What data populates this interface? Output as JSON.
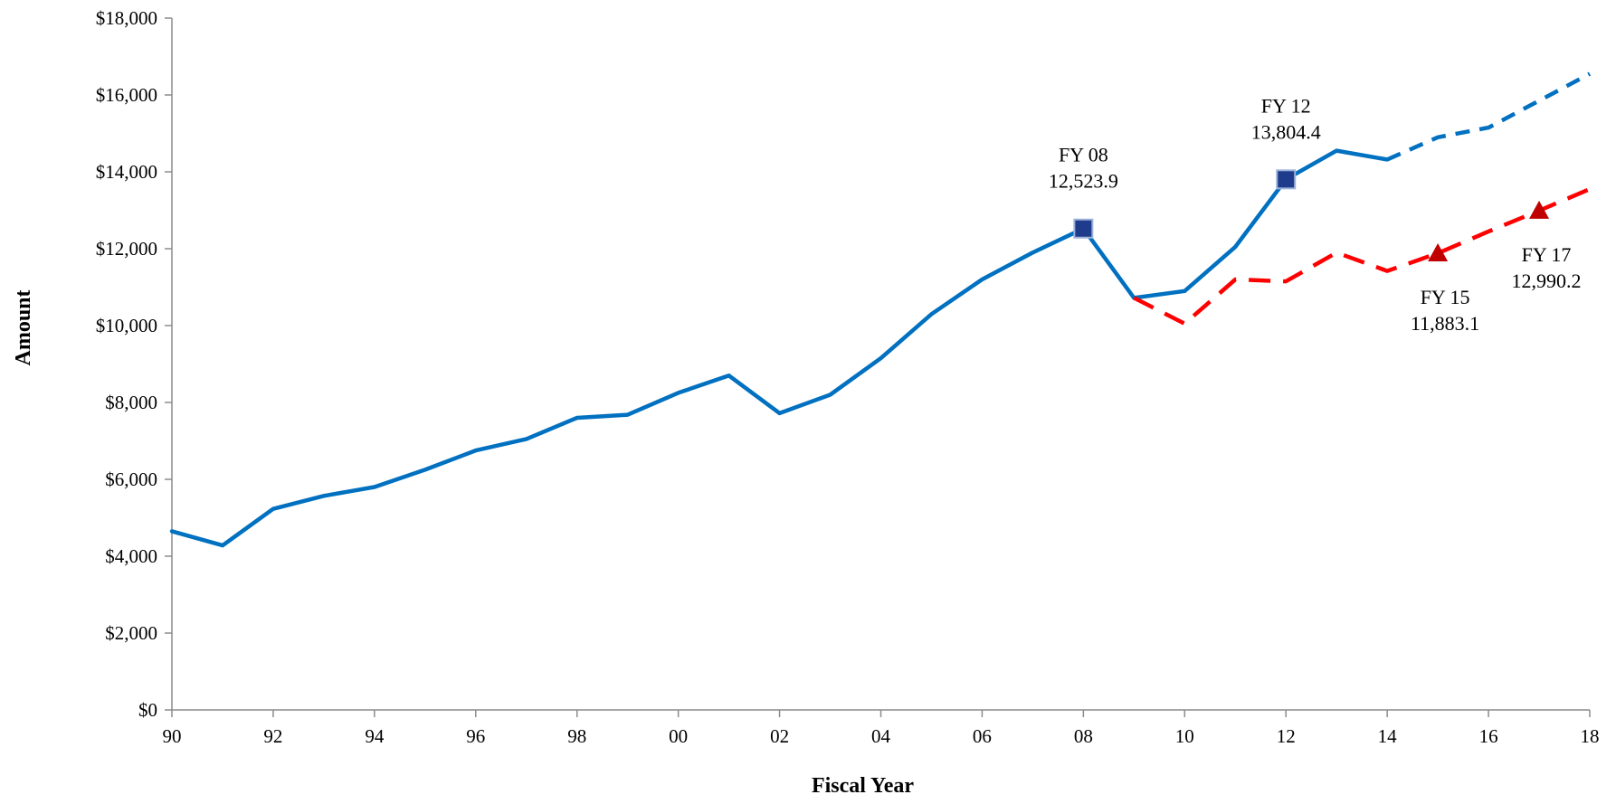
{
  "chart_data": {
    "type": "line",
    "xlabel": "Fiscal Year",
    "ylabel": "Amount",
    "xlim": [
      1990,
      2018
    ],
    "ylim": [
      0,
      18000
    ],
    "grid": false,
    "x_ticks": [
      {
        "value": 1990,
        "label": "90"
      },
      {
        "value": 1992,
        "label": "92"
      },
      {
        "value": 1994,
        "label": "94"
      },
      {
        "value": 1996,
        "label": "96"
      },
      {
        "value": 1998,
        "label": "98"
      },
      {
        "value": 2000,
        "label": "00"
      },
      {
        "value": 2002,
        "label": "02"
      },
      {
        "value": 2004,
        "label": "04"
      },
      {
        "value": 2006,
        "label": "06"
      },
      {
        "value": 2008,
        "label": "08"
      },
      {
        "value": 2010,
        "label": "10"
      },
      {
        "value": 2012,
        "label": "12"
      },
      {
        "value": 2014,
        "label": "14"
      },
      {
        "value": 2016,
        "label": "16"
      },
      {
        "value": 2018,
        "label": "18"
      }
    ],
    "y_ticks": [
      {
        "value": 0,
        "label": "$0"
      },
      {
        "value": 2000,
        "label": "$2,000"
      },
      {
        "value": 4000,
        "label": "$4,000"
      },
      {
        "value": 6000,
        "label": "$6,000"
      },
      {
        "value": 8000,
        "label": "$8,000"
      },
      {
        "value": 10000,
        "label": "$10,000"
      },
      {
        "value": 12000,
        "label": "$12,000"
      },
      {
        "value": 14000,
        "label": "$14,000"
      },
      {
        "value": 16000,
        "label": "$16,000"
      },
      {
        "value": 18000,
        "label": "$18,000"
      }
    ],
    "series": [
      {
        "color": "#0070c0",
        "style": "solid",
        "x": [
          1990,
          1991,
          1992,
          1993,
          1994,
          1995,
          1996,
          1997,
          1998,
          1999,
          2000,
          2001,
          2002,
          2003,
          2004,
          2005,
          2006,
          2007,
          2008,
          2009,
          2010,
          2011,
          2012,
          2013,
          2014
        ],
        "y": [
          4650,
          4280,
          5230,
          5570,
          5800,
          6250,
          6750,
          7050,
          7600,
          7680,
          8250,
          8700,
          7720,
          8200,
          9150,
          10300,
          11200,
          11900,
          12523.9,
          10720,
          10900,
          12050,
          13804.4,
          14550,
          14320
        ]
      },
      {
        "color": "#0070c0",
        "style": "dashed",
        "x": [
          2014,
          2015,
          2016,
          2017,
          2018
        ],
        "y": [
          14320,
          14900,
          15150,
          15850,
          16550
        ]
      },
      {
        "color": "#ff0000",
        "style": "dashed",
        "x": [
          2009,
          2010,
          2011,
          2012,
          2013,
          2014,
          2015,
          2016,
          2017,
          2018
        ],
        "y": [
          10720,
          10050,
          11200,
          11150,
          11900,
          11420,
          11883.1,
          12450,
          12990.2,
          13550
        ]
      }
    ],
    "markers": [
      {
        "shape": "square",
        "color": "#1f3b8c",
        "x": 2008,
        "y": 12523.9
      },
      {
        "shape": "square",
        "color": "#1f3b8c",
        "x": 2012,
        "y": 13804.4
      },
      {
        "shape": "triangle",
        "color": "#c00000",
        "x": 2015,
        "y": 11883.1
      },
      {
        "shape": "triangle",
        "color": "#c00000",
        "x": 2017,
        "y": 12990.2
      }
    ],
    "annotations": [
      {
        "name": "annotation-fy08",
        "x": 2008,
        "y": 12523.9,
        "position": "above",
        "lines": [
          "FY 08",
          "12,523.9"
        ]
      },
      {
        "name": "annotation-fy12",
        "x": 2012,
        "y": 13804.4,
        "position": "above",
        "lines": [
          "FY 12",
          "13,804.4"
        ]
      },
      {
        "name": "annotation-fy15",
        "x": 2015,
        "y": 11883.1,
        "position": "below",
        "lines": [
          "FY 15",
          "11,883.1"
        ]
      },
      {
        "name": "annotation-fy17",
        "x": 2017,
        "y": 12990.2,
        "position": "below",
        "lines": [
          "FY 17",
          "12,990.2"
        ]
      }
    ]
  }
}
